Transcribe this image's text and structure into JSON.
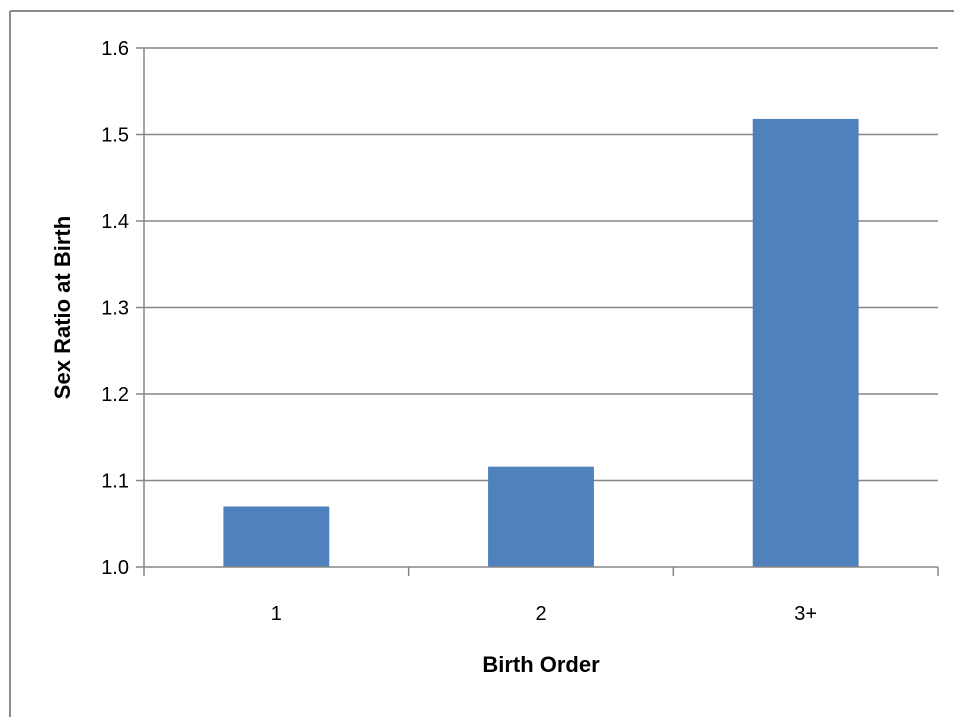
{
  "chart_data": {
    "type": "bar",
    "categories": [
      "1",
      "2",
      "3+"
    ],
    "values": [
      1.07,
      1.116,
      1.518
    ],
    "title": "",
    "xlabel": "Birth Order",
    "ylabel": "Sex Ratio at Birth",
    "ylim": [
      1.0,
      1.6
    ],
    "yticks": [
      "1.0",
      "1.1",
      "1.2",
      "1.3",
      "1.4",
      "1.5",
      "1.6"
    ],
    "grid": true,
    "legend": "none",
    "colors": {
      "bar": "#4f81bd",
      "grid": "#868686",
      "axis": "#868686",
      "frame": "#8c8c8c"
    }
  }
}
